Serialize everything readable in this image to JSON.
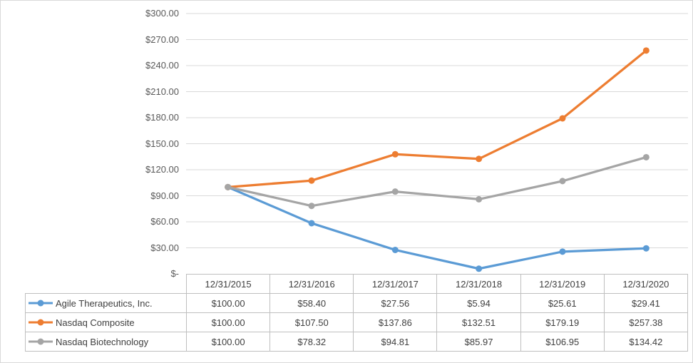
{
  "colors": {
    "agile_blue": "#5B9BD5",
    "composite_orange": "#ED7D31",
    "biotech_gray": "#A5A5A5",
    "gridline": "#D9D9D9",
    "table_border": "#BFBFBF",
    "axis_text": "#595959",
    "table_text": "#404040"
  },
  "chart_data": {
    "type": "line",
    "categories": [
      "12/31/2015",
      "12/31/2016",
      "12/31/2017",
      "12/31/2018",
      "12/31/2019",
      "12/31/2020"
    ],
    "series": [
      {
        "name": "Agile Therapeutics, Inc.",
        "color": "#5B9BD5",
        "values": [
          100.0,
          58.4,
          27.56,
          5.94,
          25.61,
          29.41
        ]
      },
      {
        "name": "Nasdaq Composite",
        "color": "#ED7D31",
        "values": [
          100.0,
          107.5,
          137.86,
          132.51,
          179.19,
          257.38
        ]
      },
      {
        "name": "Nasdaq Biotechnology",
        "color": "#A5A5A5",
        "values": [
          100.0,
          78.32,
          94.81,
          85.97,
          106.95,
          134.42
        ]
      }
    ],
    "title": "",
    "xlabel": "",
    "ylabel": "",
    "ylim": [
      0,
      300
    ],
    "ytick_step": 30,
    "ytick_labels": [
      "$-",
      "$30.00",
      "$60.00",
      "$90.00",
      "$120.00",
      "$150.00",
      "$180.00",
      "$210.00",
      "$240.00",
      "$270.00",
      "$300.00"
    ],
    "grid": true,
    "legend_position": "table-left",
    "markers": true
  },
  "table": {
    "header": [
      "12/31/2015",
      "12/31/2016",
      "12/31/2017",
      "12/31/2018",
      "12/31/2019",
      "12/31/2020"
    ],
    "rows": [
      {
        "label": "Agile Therapeutics, Inc.",
        "values": [
          "$100.00",
          "$58.40",
          "$27.56",
          "$5.94",
          "$25.61",
          "$29.41"
        ]
      },
      {
        "label": "Nasdaq Composite",
        "values": [
          "$100.00",
          "$107.50",
          "$137.86",
          "$132.51",
          "$179.19",
          "$257.38"
        ]
      },
      {
        "label": "Nasdaq Biotechnology",
        "values": [
          "$100.00",
          "$78.32",
          "$94.81",
          "$85.97",
          "$106.95",
          "$134.42"
        ]
      }
    ]
  }
}
